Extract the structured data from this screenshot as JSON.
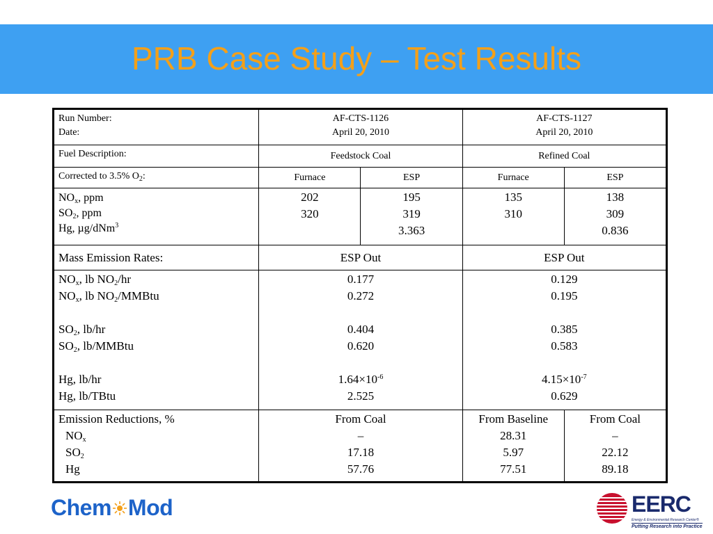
{
  "title": "PRB Case Study – Test Results",
  "run": {
    "label_1": "Run Number:",
    "label_2": "Date:",
    "a_id": "AF-CTS-1126",
    "a_date": "April 20, 2010",
    "b_id": "AF-CTS-1127",
    "b_date": "April 20, 2010"
  },
  "fuel": {
    "label": "Fuel Description:",
    "a": "Feedstock Coal",
    "b": "Refined Coal"
  },
  "corrected": {
    "label_pre": "Corrected to 3.5% O",
    "label_sub": "2",
    "label_post": ":",
    "c1": "Furnace",
    "c2": "ESP",
    "c3": "Furnace",
    "c4": "ESP"
  },
  "conc": {
    "nox_a": "NO",
    "nox_sub": "x",
    "nox_b": ", ppm",
    "so2_a": "SO",
    "so2_sub": "2",
    "so2_b": ", ppm",
    "hg_a": "Hg, µg/dNm",
    "hg_sup": "3",
    "c1": [
      "202",
      "320"
    ],
    "c2": [
      "195",
      "319",
      "3.363"
    ],
    "c3": [
      "135",
      "310"
    ],
    "c4": [
      "138",
      "309",
      "0.836"
    ]
  },
  "mass": {
    "label": "Mass Emission Rates:",
    "a": "ESP Out",
    "b": "ESP Out",
    "r1_a": "NO",
    "r1_sub1": "x",
    "r1_b": ", lb NO",
    "r1_sub2": "2",
    "r1_c": "/hr",
    "r2_a": "NO",
    "r2_sub1": "x",
    "r2_b": ", lb NO",
    "r2_sub2": "2",
    "r2_c": "/MMBtu",
    "r3_a": "SO",
    "r3_sub": "2",
    "r3_b": ", lb/hr",
    "r4_a": "SO",
    "r4_sub": "2",
    "r4_b": ", lb/MMBtu",
    "r5": "Hg, lb/hr",
    "r6": "Hg, lb/TBtu",
    "a_nox_hr": "0.177",
    "a_nox_mmbtu": "0.272",
    "a_so2_hr": "0.404",
    "a_so2_mmbtu": "0.620",
    "a_hg_hr_base": "1.64×10",
    "a_hg_hr_exp": "-6",
    "a_hg_tbtu": "2.525",
    "b_nox_hr": "0.129",
    "b_nox_mmbtu": "0.195",
    "b_so2_hr": "0.385",
    "b_so2_mmbtu": "0.583",
    "b_hg_hr_base": "4.15×10",
    "b_hg_hr_exp": "-7",
    "b_hg_tbtu": "0.629"
  },
  "reductions": {
    "label": "Emission Reductions, %",
    "nox_a": "NO",
    "nox_sub": "x",
    "so2_a": "SO",
    "so2_sub": "2",
    "hg": "Hg",
    "a_head": "From Coal",
    "a_vals": [
      "–",
      "17.18",
      "57.76"
    ],
    "b1_head": "From Baseline",
    "b1_vals": [
      "28.31",
      "5.97",
      "77.51"
    ],
    "b2_head": "From Coal",
    "b2_vals": [
      "–",
      "22.12",
      "89.18"
    ]
  },
  "logos": {
    "chem_left": "Chem",
    "chem_right": "Mod",
    "eerc": "EERC",
    "eerc_sub": "Energy & Environmental Research Center®",
    "eerc_tag": "Putting Research into Practice"
  },
  "colors": {
    "title_bar": "#3ea0f2",
    "title_text": "#f4a019",
    "chemmod_blue": "#1d63c9",
    "eerc_red": "#c8102e",
    "eerc_navy": "#1a2a6c"
  }
}
